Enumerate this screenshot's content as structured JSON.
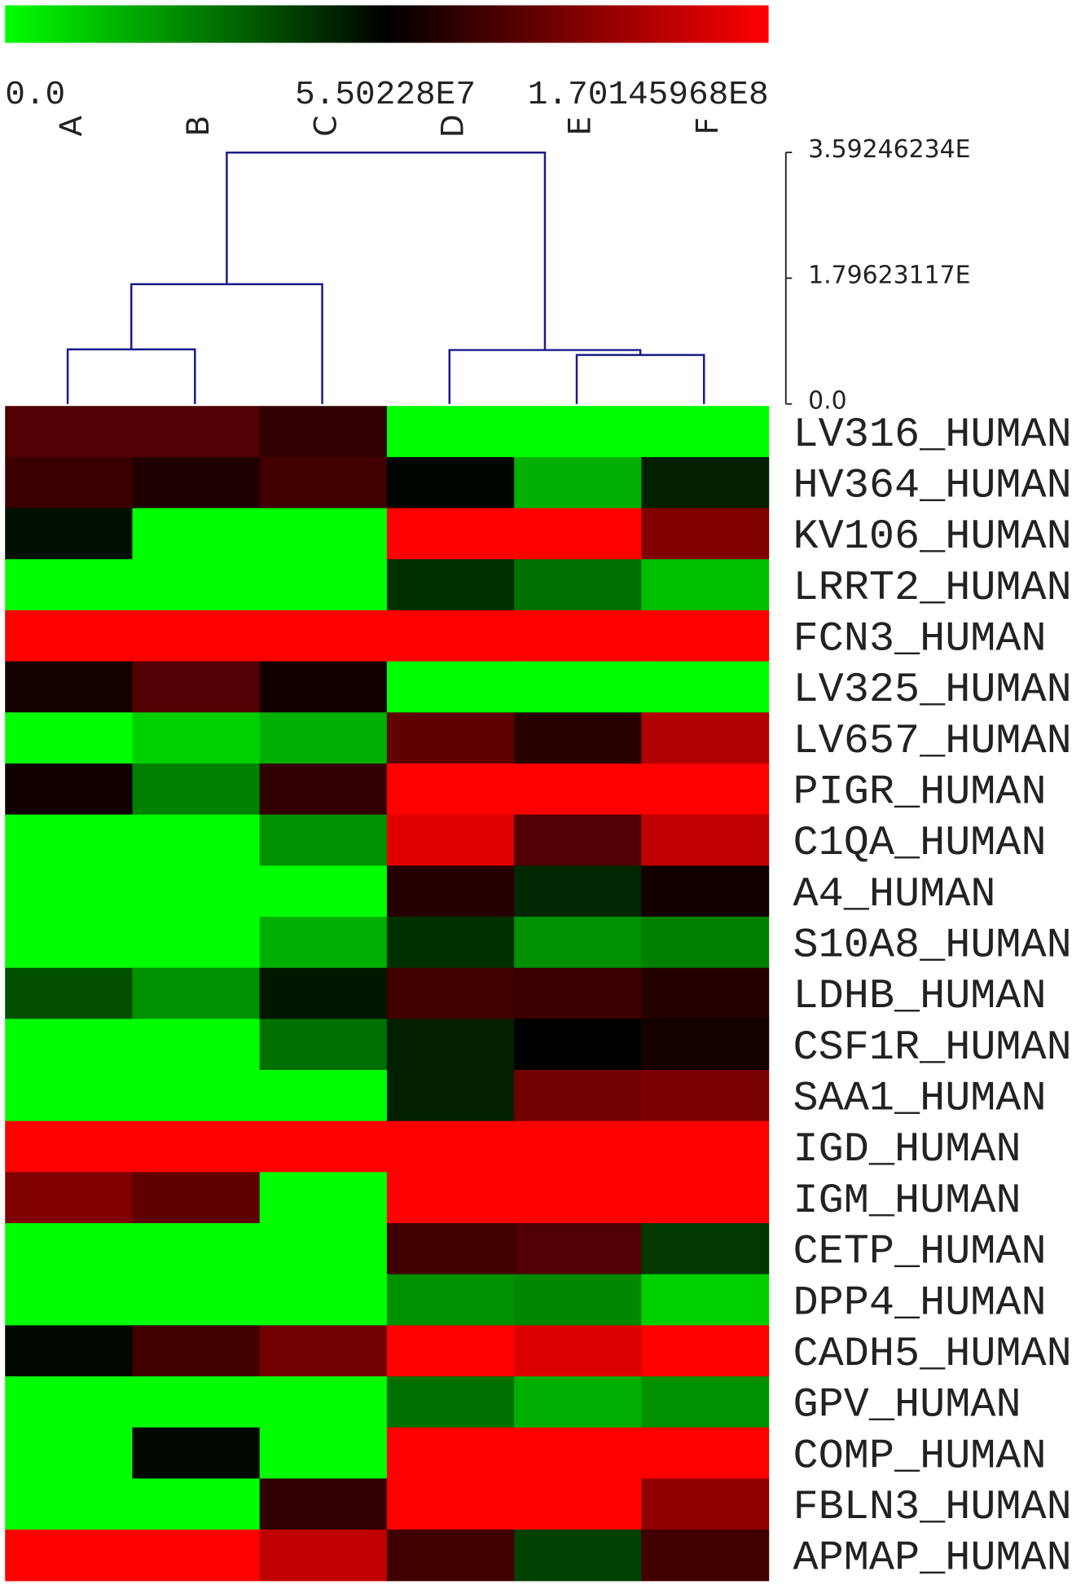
{
  "chart_data": {
    "type": "heatmap",
    "colorbar": {
      "colors": [
        "#00ff00",
        "#000000",
        "#ff0000"
      ],
      "labels": [
        "0.0",
        "5.50228E7",
        "1.70145968E8"
      ]
    },
    "columns": [
      "A",
      "B",
      "C",
      "D",
      "E",
      "F"
    ],
    "rows": [
      "LV316_HUMAN",
      "HV364_HUMAN",
      "KV106_HUMAN",
      "LRRT2_HUMAN",
      "FCN3_HUMAN",
      "LV325_HUMAN",
      "LV657_HUMAN",
      "PIGR_HUMAN",
      "C1QA_HUMAN",
      "A4_HUMAN",
      "S10A8_HUMAN",
      "LDHB_HUMAN",
      "CSF1R_HUMAN",
      "SAA1_HUMAN",
      "IGD_HUMAN",
      "IGM_HUMAN",
      "CETP_HUMAN",
      "DPP4_HUMAN",
      "CADH5_HUMAN",
      "GPV_HUMAN",
      "COMP_HUMAN",
      "FBLN3_HUMAN",
      "APMAP_HUMAN"
    ],
    "cell_colors": [
      [
        "#500000",
        "#500000",
        "#300000",
        "#00ff00",
        "#00ff00",
        "#00ff00"
      ],
      [
        "#3a0000",
        "#200000",
        "#400000",
        "#000500",
        "#00b000",
        "#002000"
      ],
      [
        "#001000",
        "#00ff00",
        "#00ff00",
        "#ff0000",
        "#ff0000",
        "#800000"
      ],
      [
        "#00ff00",
        "#00ff00",
        "#00ff00",
        "#003000",
        "#007000",
        "#00c000"
      ],
      [
        "#ff0000",
        "#ff0000",
        "#ff0000",
        "#ff0000",
        "#ff0000",
        "#ff0000"
      ],
      [
        "#150000",
        "#500000",
        "#120000",
        "#00ff00",
        "#00ff00",
        "#00ff00"
      ],
      [
        "#00ff00",
        "#00d000",
        "#00b000",
        "#600000",
        "#280000",
        "#b00000"
      ],
      [
        "#100000",
        "#008000",
        "#300000",
        "#ff0000",
        "#ff0000",
        "#ff0000"
      ],
      [
        "#00ff00",
        "#00ff00",
        "#009000",
        "#e00000",
        "#500000",
        "#c00000"
      ],
      [
        "#00ff00",
        "#00ff00",
        "#00ff00",
        "#250000",
        "#002800",
        "#100000"
      ],
      [
        "#00ff00",
        "#00ff00",
        "#00b000",
        "#003000",
        "#009000",
        "#008000"
      ],
      [
        "#005000",
        "#009000",
        "#001800",
        "#400000",
        "#3a0000",
        "#250000"
      ],
      [
        "#00ff00",
        "#00ff00",
        "#007000",
        "#002000",
        "#000000",
        "#150000"
      ],
      [
        "#00ff00",
        "#00ff00",
        "#00ff00",
        "#002000",
        "#700000",
        "#780000"
      ],
      [
        "#ff0000",
        "#ff0000",
        "#ff0000",
        "#ff0000",
        "#ff0000",
        "#ff0000"
      ],
      [
        "#800000",
        "#600000",
        "#00ff00",
        "#ff0000",
        "#ff0000",
        "#ff0000"
      ],
      [
        "#00ff00",
        "#00ff00",
        "#00ff00",
        "#400000",
        "#500000",
        "#003800"
      ],
      [
        "#00ff00",
        "#00ff00",
        "#00ff00",
        "#009000",
        "#008800",
        "#00d000"
      ],
      [
        "#000800",
        "#400000",
        "#700000",
        "#ff0000",
        "#dd0000",
        "#ff0000"
      ],
      [
        "#00ff00",
        "#00ff00",
        "#00ff00",
        "#007000",
        "#00b000",
        "#009000"
      ],
      [
        "#00ff00",
        "#000800",
        "#00ff00",
        "#ff0000",
        "#ff0000",
        "#ff0000"
      ],
      [
        "#00ff00",
        "#00ff00",
        "#300000",
        "#ff0000",
        "#ff0000",
        "#900000"
      ],
      [
        "#ff0000",
        "#ff0000",
        "#c00000",
        "#400000",
        "#004000",
        "#400000"
      ]
    ],
    "dendrogram": {
      "color": "#1a1a8c",
      "merges": [
        {
          "children": [
            0,
            1
          ],
          "height": 0.78
        },
        {
          "children": [
            6,
            2
          ],
          "height": 1.71
        },
        {
          "children": [
            4,
            5
          ],
          "height": 0.7
        },
        {
          "children": [
            3,
            8
          ],
          "height": 0.77
        },
        {
          "children": [
            7,
            9
          ],
          "height": 3.59
        }
      ]
    },
    "ylim": [
      0,
      3.59246234
    ],
    "yticks": [
      {
        "value": 0,
        "label": "0.0"
      },
      {
        "value": 1.79623117,
        "label": "1.79623117E"
      },
      {
        "value": 3.59246234,
        "label": "3.59246234E"
      }
    ]
  }
}
